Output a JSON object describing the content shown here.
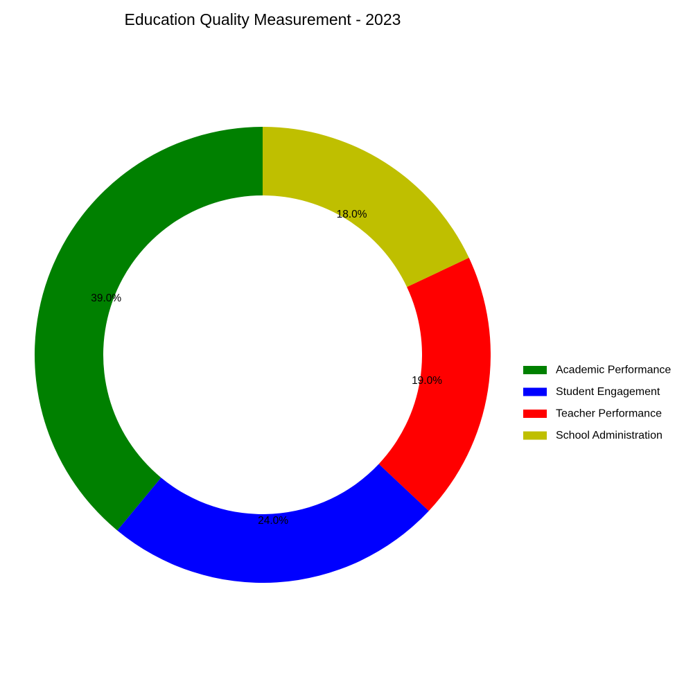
{
  "chart_data": {
    "type": "pie",
    "variant": "donut",
    "title": "Education Quality Measurement - 2023",
    "categories": [
      "Academic Performance",
      "Student Engagement",
      "Teacher Performance",
      "School Administration"
    ],
    "values": [
      39.0,
      24.0,
      19.0,
      18.0
    ],
    "value_labels": [
      "39.0%",
      "24.0%",
      "19.0%",
      "18.0%"
    ],
    "colors": [
      "#008000",
      "#0000ff",
      "#ff0000",
      "#bfbf00"
    ],
    "start_angle_deg": 90,
    "direction": "counterclockwise",
    "legend_position": "right"
  }
}
